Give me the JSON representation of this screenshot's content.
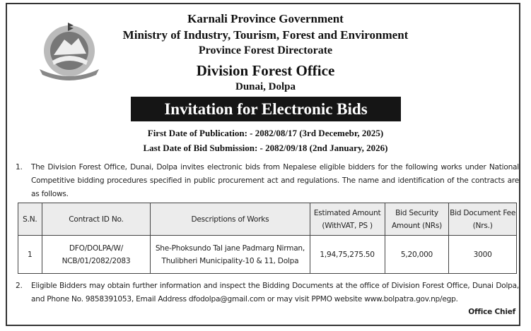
{
  "header": {
    "line1": "Karnali Province Government",
    "line2": "Ministry of Industry, Tourism, Forest and Environment",
    "line3": "Province Forest Directorate",
    "line4": "Division Forest Office",
    "line5": "Dunai, Dolpa",
    "emblem": "Government of Nepal emblem"
  },
  "banner": "Invitation for Electronic Bids",
  "dates": {
    "publication": "First Date of Publication: - 2082/08/17  (3rd Decemebr, 2025)",
    "submission": "Last Date of Bid Submission: - 2082/09/18 (2nd January, 2026)"
  },
  "para1": {
    "num": "1.",
    "text": "The Division Forest Office, Dunai, Dolpa invites electronic bids from Nepalese eligible bidders for the following works under National Competitive bidding procedures specified in public procurement act and regulations. The name and identification of the contracts are as follows."
  },
  "table": {
    "headers": [
      "S.N.",
      "Contract ID No.",
      "Descriptions of Works",
      "Estimated Amount (WithVAT, PS )",
      "Bid Security Amount (NRs)",
      "Bid Document Fee (Nrs.)"
    ],
    "rows": [
      [
        "1",
        "DFO/DOLPA/W/ NCB/01/2082/2083",
        "She-Phoksundo Tal jane Padmarg Nirman, Thulibheri Municipality-10 & 11,  Dolpa",
        "1,94,75,275.50",
        "5,20,000",
        "3000"
      ]
    ]
  },
  "para2": {
    "num": "2.",
    "text": "Eligible Bidders may obtain further information and inspect the Bidding Documents at the office of Division Forest Office, Dunai Dolpa, and Phone No. 9858391053, Email Address dfodolpa@gmail.com or may visit PPMO website www.bolpatra.gov.np/egp."
  },
  "signature": "Office Chief"
}
